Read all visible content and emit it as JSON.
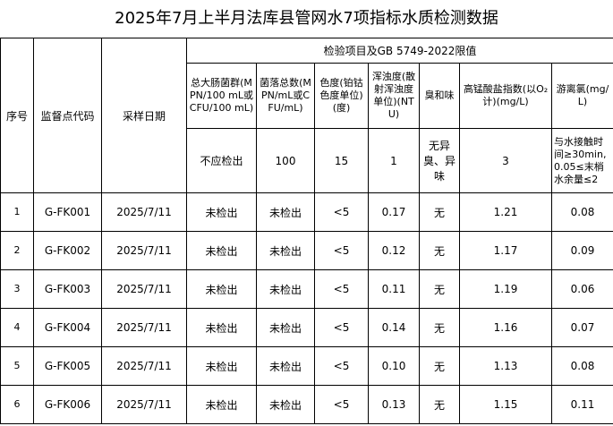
{
  "title": "2025年7月上半月法库县管网水7项指标水质检测数据",
  "table": {
    "header": {
      "index": "序号",
      "code": "监督点代码",
      "date": "采样日期",
      "group": "检验项目及GB 5749-2022限值",
      "items": [
        "总大肠菌群(MPN/100 mL或 CFU/100 mL)",
        "菌落总数(MPN/mL或CFU/mL)",
        "色度(铂钴色度单位)(度)",
        "浑浊度(散射浑浊度单位)(NTU)",
        "臭和味",
        "高锰酸盐指数(以O₂计)(mg/L)",
        "游离氯(mg/L)"
      ],
      "limits": [
        "不应检出",
        "100",
        "15",
        "1",
        "无异臭、异味",
        "3",
        "与水接触时间≥30min,0.05≤末梢水余量≤2"
      ]
    },
    "rows": [
      [
        "1",
        "G-FK001",
        "2025/7/11",
        "未检出",
        "未检出",
        "<5",
        "0.17",
        "无",
        "1.21",
        "0.08"
      ],
      [
        "2",
        "G-FK002",
        "2025/7/11",
        "未检出",
        "未检出",
        "<5",
        "0.12",
        "无",
        "1.17",
        "0.09"
      ],
      [
        "3",
        "G-FK003",
        "2025/7/11",
        "未检出",
        "未检出",
        "<5",
        "0.11",
        "无",
        "1.19",
        "0.06"
      ],
      [
        "4",
        "G-FK004",
        "2025/7/11",
        "未检出",
        "未检出",
        "<5",
        "0.14",
        "无",
        "1.16",
        "0.07"
      ],
      [
        "5",
        "G-FK005",
        "2025/7/11",
        "未检出",
        "未检出",
        "<5",
        "0.10",
        "无",
        "1.13",
        "0.08"
      ],
      [
        "6",
        "G-FK006",
        "2025/7/11",
        "未检出",
        "未检出",
        "<5",
        "0.13",
        "无",
        "1.15",
        "0.11"
      ]
    ]
  }
}
